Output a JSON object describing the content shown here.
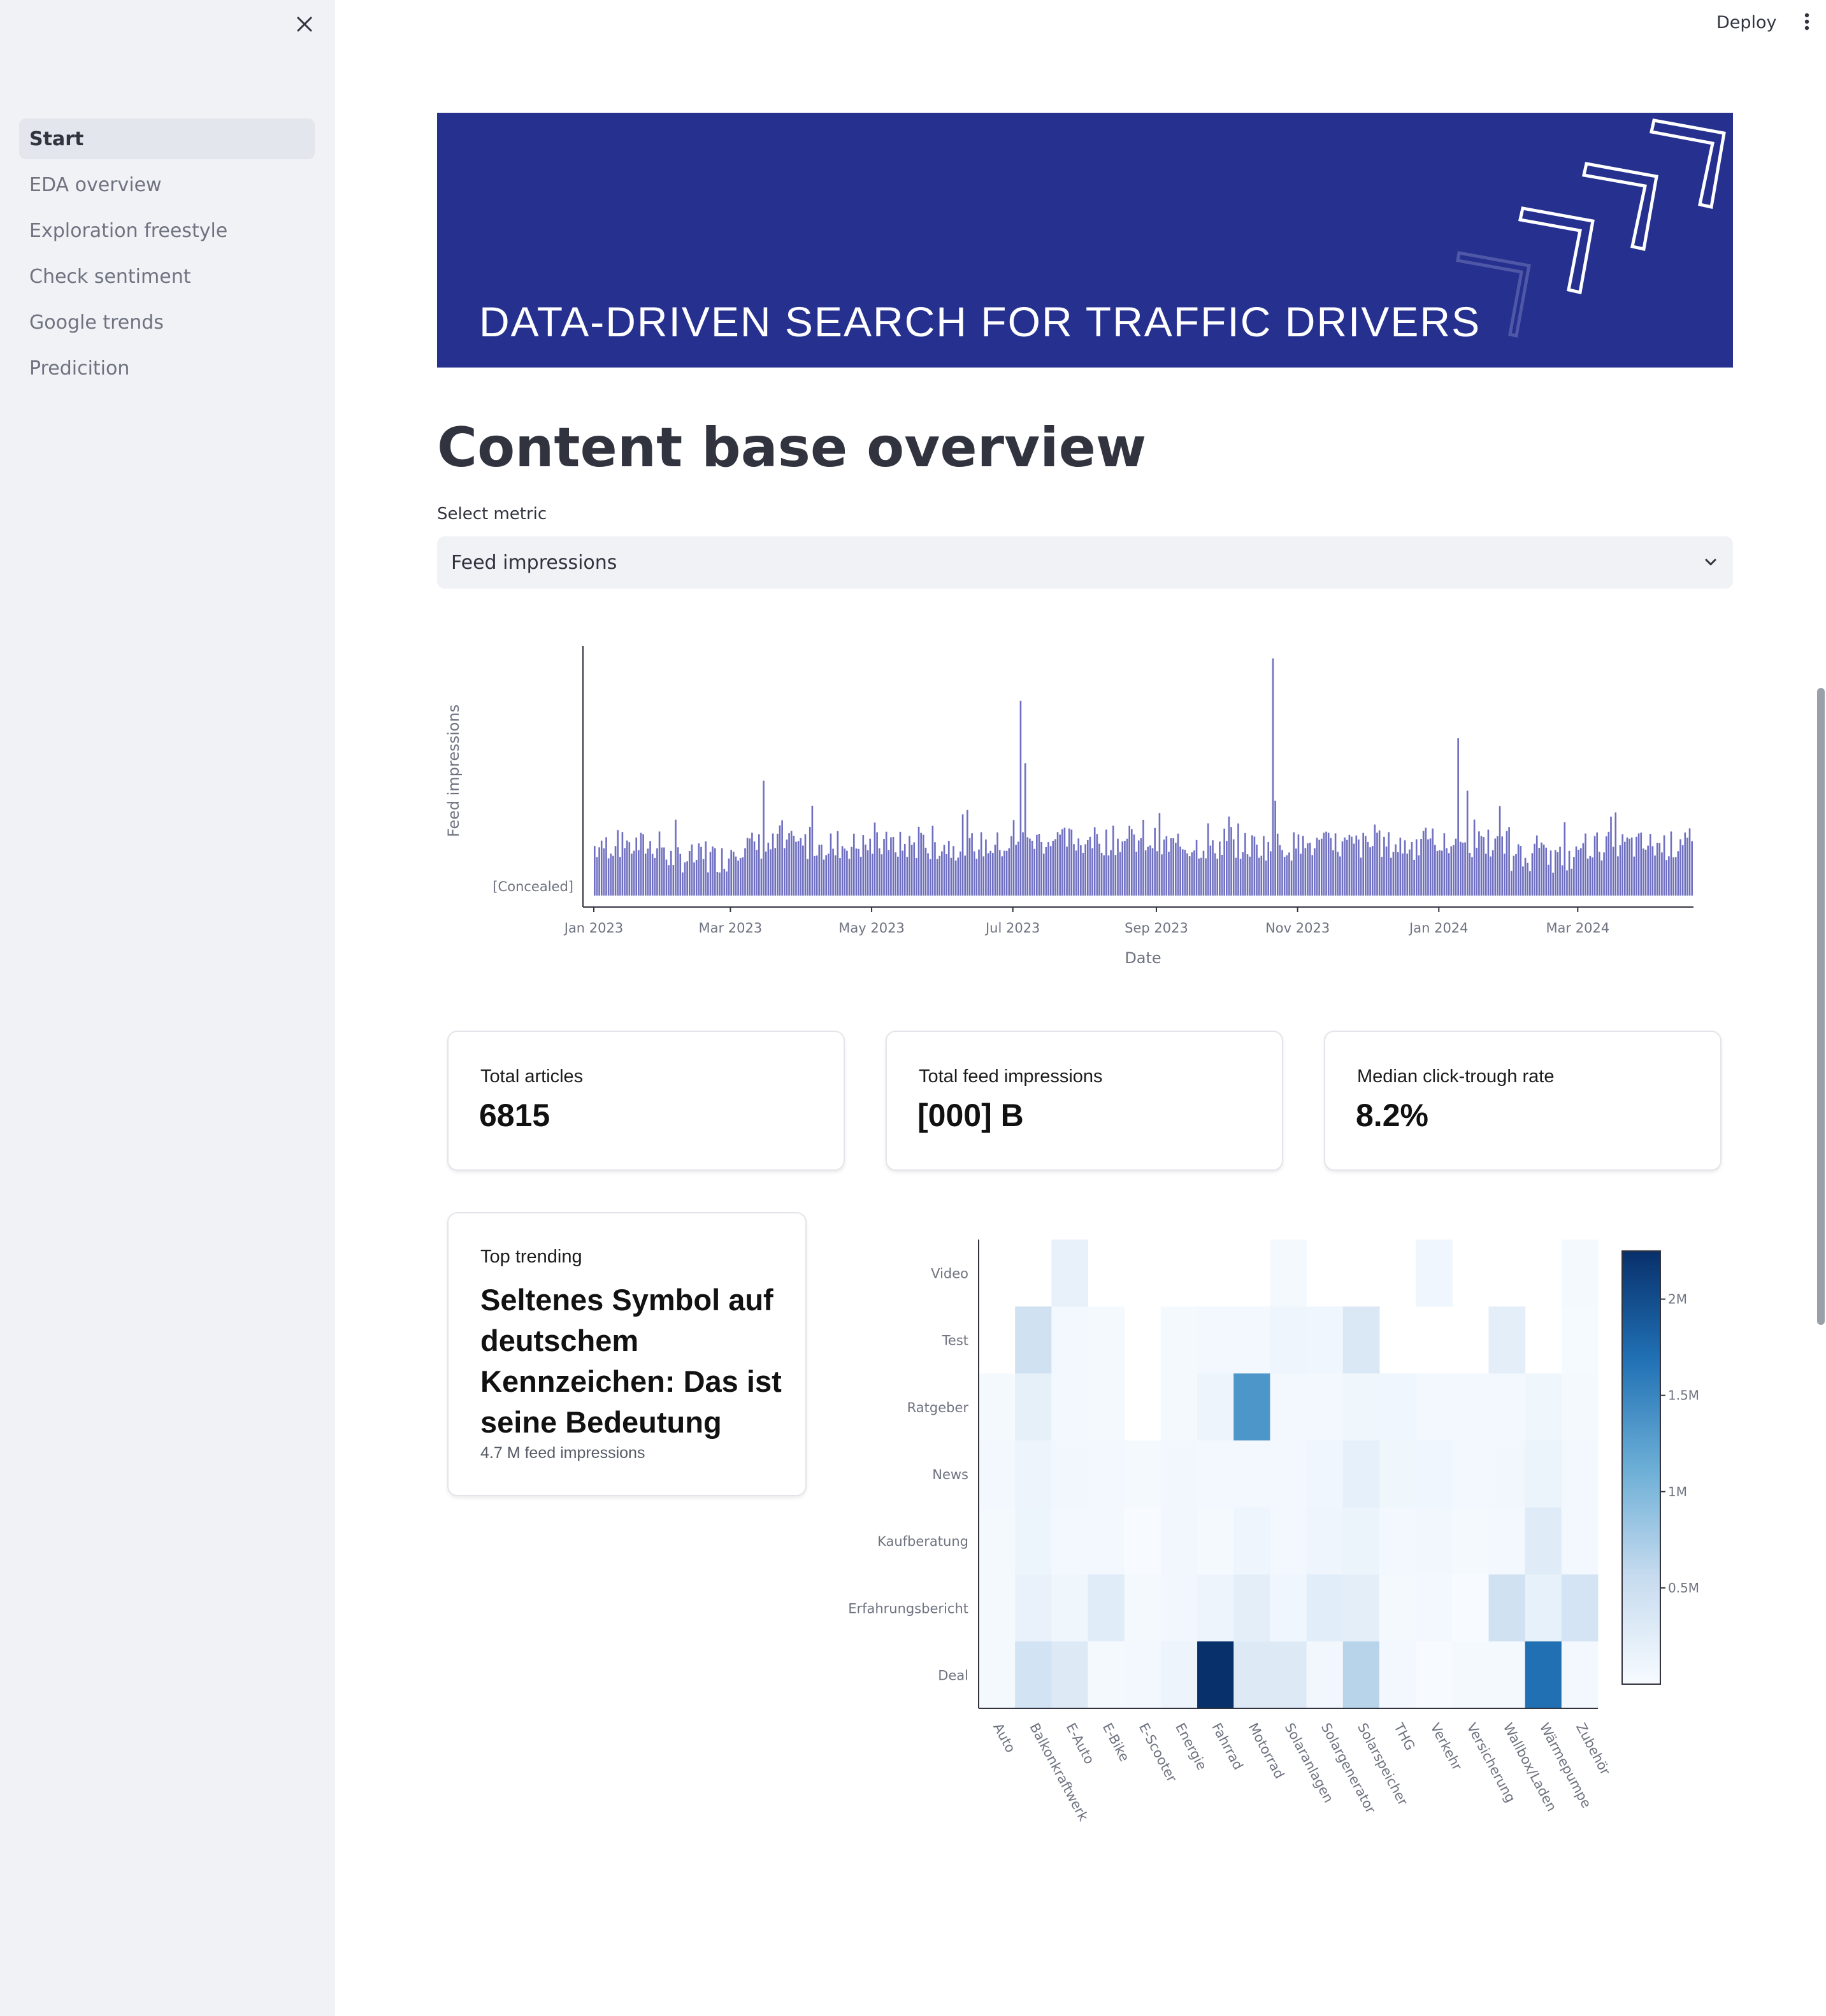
{
  "sidebar": {
    "items": [
      {
        "label": "Start",
        "active": true
      },
      {
        "label": "EDA overview",
        "active": false
      },
      {
        "label": "Exploration freestyle",
        "active": false
      },
      {
        "label": "Check sentiment",
        "active": false
      },
      {
        "label": "Google trends",
        "active": false
      },
      {
        "label": "Predicition",
        "active": false
      }
    ]
  },
  "topbar": {
    "deploy_label": "Deploy"
  },
  "banner": {
    "title": "DATA-DRIVEN SEARCH FOR TRAFFIC DRIVERS",
    "background_color": "#25308f"
  },
  "page": {
    "title": "Content base overview"
  },
  "metric_select": {
    "label": "Select metric",
    "value": "Feed impressions"
  },
  "metrics": [
    {
      "label": "Total articles",
      "value": "6815"
    },
    {
      "label": "Total feed impressions",
      "value": "[000] B"
    },
    {
      "label": "Median click-trough rate",
      "value": "8.2%"
    }
  ],
  "trending": {
    "label": "Top trending",
    "title": "Seltenes Symbol auf deutschem Kennzeichen: Das ist seine Bedeutung",
    "subtitle": "4.7 M feed impressions"
  },
  "icons": {
    "close": "close-icon",
    "menu": "vertical-dots-icon",
    "dropdown": "chevron-down-icon"
  },
  "chart_data": [
    {
      "type": "bar",
      "title": "",
      "xlabel": "Date",
      "ylabel": "Feed impressions",
      "y_tick_label": "[Concealed]",
      "x_range": [
        "2023-01-01",
        "2024-04-20"
      ],
      "x_tick_labels": [
        "Jan 2023",
        "Mar 2023",
        "May 2023",
        "Jul 2023",
        "Sep 2023",
        "Nov 2023",
        "Jan 2024",
        "Mar 2024"
      ],
      "x_tick_dates": [
        "2023-01-01",
        "2023-03-01",
        "2023-05-01",
        "2023-07-01",
        "2023-09-01",
        "2023-11-01",
        "2024-01-01",
        "2024-03-01"
      ],
      "y_values_concealed": true,
      "bar_color": "#6f6fc0",
      "y_scale": "relative (0-100, actual values concealed)",
      "peaks": [
        {
          "date": "2023-03-15",
          "value": 46
        },
        {
          "date": "2023-04-05",
          "value": 36
        },
        {
          "date": "2023-07-04",
          "value": 78
        },
        {
          "date": "2023-07-06",
          "value": 53
        },
        {
          "date": "2023-10-21",
          "value": 95
        },
        {
          "date": "2023-10-22",
          "value": 38
        },
        {
          "date": "2024-01-09",
          "value": 63
        },
        {
          "date": "2024-01-13",
          "value": 42
        }
      ],
      "grid": false
    },
    {
      "type": "heatmap",
      "title": "",
      "x_categories": [
        "Auto",
        "Balkonkraftwerk",
        "E-Auto",
        "E-Bike",
        "E-Scooter",
        "Energie",
        "Fahrrad",
        "Motorrad",
        "Solaranlagen",
        "Solargenerator",
        "Solarspeicher",
        "THG",
        "Verkehr",
        "Versicherung",
        "Wallbox/Laden",
        "Wärmepumpe",
        "Zubehör"
      ],
      "y_categories": [
        "Video",
        "Test",
        "Ratgeber",
        "News",
        "Kaufberatung",
        "Erfahrungsbericht",
        "Deal"
      ],
      "values_unit": "feed impressions",
      "values": [
        [
          null,
          null,
          0.17,
          null,
          null,
          null,
          null,
          null,
          0.04,
          null,
          null,
          null,
          0.08,
          null,
          null,
          null,
          0.03
        ],
        [
          null,
          0.45,
          0.06,
          0.03,
          null,
          0.03,
          0.05,
          0.06,
          0.1,
          0.08,
          0.33,
          null,
          null,
          null,
          0.22,
          null,
          0.02
        ],
        [
          0.04,
          0.2,
          0.05,
          0.04,
          null,
          0.04,
          0.12,
          1.35,
          0.06,
          0.06,
          0.09,
          0.08,
          0.06,
          0.05,
          0.05,
          0.09,
          0.04
        ],
        [
          0.05,
          0.12,
          0.07,
          0.05,
          0.04,
          0.07,
          0.06,
          0.06,
          0.06,
          0.08,
          0.19,
          0.09,
          0.08,
          0.06,
          0.07,
          0.14,
          0.05
        ],
        [
          0.04,
          0.11,
          0.06,
          0.06,
          0.0,
          0.07,
          0.03,
          0.1,
          0.06,
          0.1,
          0.14,
          0.05,
          0.07,
          0.04,
          0.05,
          0.28,
          0.05
        ],
        [
          0.04,
          0.16,
          0.09,
          0.26,
          0.04,
          0.07,
          0.12,
          0.22,
          0.08,
          0.25,
          0.22,
          0.04,
          0.05,
          0.0,
          0.45,
          0.18,
          0.4
        ],
        [
          0.04,
          0.42,
          0.3,
          0.04,
          0.06,
          0.12,
          2.25,
          0.3,
          0.3,
          0.07,
          0.65,
          0.05,
          0.0,
          0.03,
          0.04,
          1.7,
          0.05
        ]
      ],
      "colorscale": "Blues",
      "colorbar_range": [
        0,
        2.25
      ],
      "colorbar_ticks": [
        0.5,
        1,
        1.5,
        2
      ],
      "colorbar_tick_labels": [
        "0.5M",
        "1M",
        "1.5M",
        "2M"
      ]
    }
  ]
}
